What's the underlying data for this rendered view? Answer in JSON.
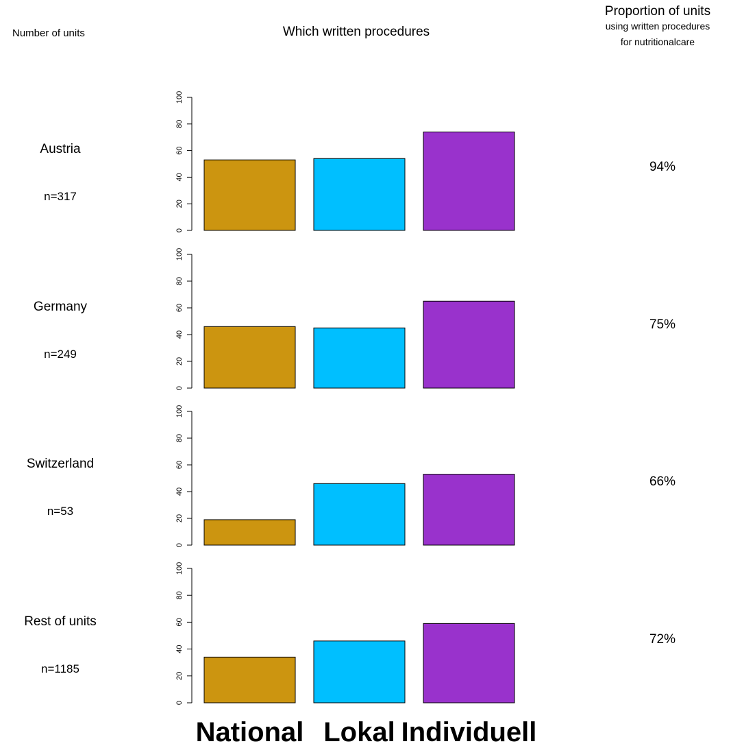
{
  "headers": {
    "left": "Number of units",
    "center": "Which written procedures",
    "right_title": "Proportion of units",
    "right_sub1": "using written procedures",
    "right_sub2": "for nutritionalcare"
  },
  "colors": {
    "National": "#CC9510",
    "Lokal": "#00BFFF",
    "Individuell": "#9932CC"
  },
  "chart_data": {
    "type": "bar",
    "categories": [
      "National",
      "Lokal",
      "Individuell"
    ],
    "ylim": [
      0,
      100
    ],
    "yticks": [
      "0",
      "20",
      "40",
      "60",
      "80",
      "100"
    ],
    "panels": [
      {
        "label": "Austria",
        "n": "n=317",
        "proportion": "94%",
        "values": [
          53,
          54,
          74
        ]
      },
      {
        "label": "Germany",
        "n": "n=249",
        "proportion": "75%",
        "values": [
          46,
          45,
          65
        ]
      },
      {
        "label": "Switzerland",
        "n": "n=53",
        "proportion": "66%",
        "values": [
          19,
          46,
          53
        ]
      },
      {
        "label": "Rest of units",
        "n": "n=1185",
        "proportion": "72%",
        "values": [
          34,
          46,
          59
        ]
      }
    ]
  }
}
